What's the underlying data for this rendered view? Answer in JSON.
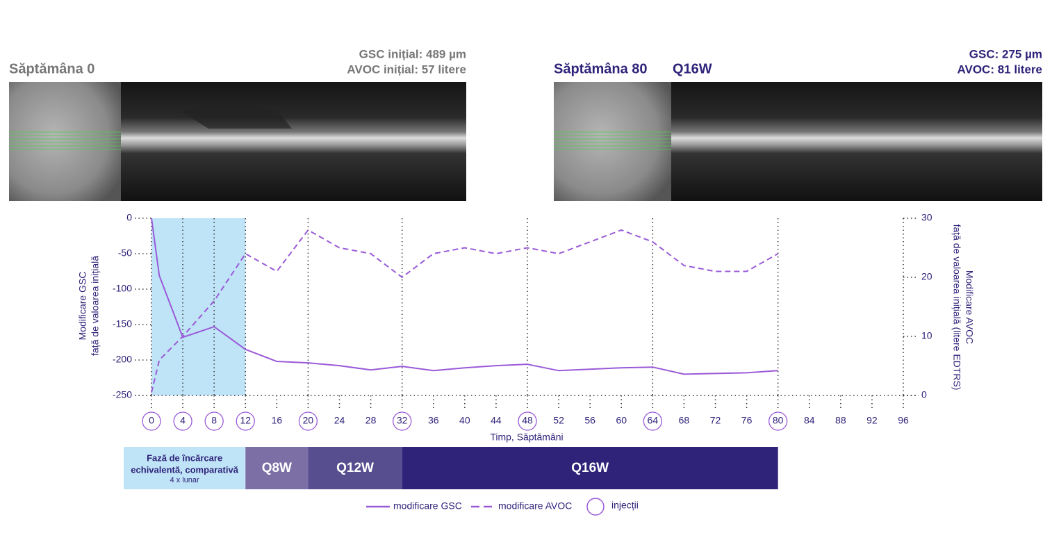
{
  "panels": [
    {
      "title": "Săptămâna 0",
      "lines": [
        "GSC inițial: 489 µm",
        "AVOC inițial: 57 litere"
      ]
    },
    {
      "title": "Săptămâna 80",
      "tag": "Q16W",
      "lines": [
        "GSC: 275 µm",
        "AVOC: 81 litere"
      ]
    }
  ],
  "chart_data": {
    "type": "line",
    "xlabel": "Timp, Săptămâni",
    "ylabel": [
      "Modificare GSC",
      "față de valoarea inițială"
    ],
    "y2label": [
      "Modificare AVOC",
      "față de valoarea inițială (litere EDTRS)"
    ],
    "x": [
      0,
      1,
      4,
      8,
      12,
      16,
      20,
      24,
      28,
      32,
      36,
      40,
      44,
      48,
      52,
      56,
      60,
      64,
      68,
      72,
      76,
      80
    ],
    "series": [
      {
        "name": "modificare GSC",
        "color": "#9a5ad8",
        "dash": false,
        "values": [
          0,
          -81,
          -168,
          -153,
          -185,
          -202,
          -204,
          -208,
          -214,
          -209,
          -215,
          -211,
          -208,
          -206,
          -215,
          -213,
          -211,
          -210,
          -220,
          -219,
          -218,
          -215
        ]
      },
      {
        "name": "modificare AVOC",
        "color": "#9a5ad8",
        "dash": true,
        "axis": "y2",
        "values": [
          0.5,
          6,
          10,
          16,
          24,
          21,
          28,
          25,
          24,
          20,
          24,
          25,
          24,
          25,
          24,
          26,
          28,
          26,
          22,
          21,
          21,
          24
        ]
      }
    ],
    "xlim": [
      0,
      96
    ],
    "xticks": [
      0,
      4,
      8,
      12,
      16,
      20,
      24,
      28,
      32,
      36,
      40,
      44,
      48,
      52,
      56,
      60,
      64,
      68,
      72,
      76,
      80,
      84,
      88,
      92,
      96
    ],
    "ylim": [
      -250,
      0
    ],
    "yticks": [
      0,
      -50,
      -100,
      -150,
      -200,
      -250
    ],
    "y2lim": [
      0,
      30
    ],
    "y2ticks": [
      30,
      20,
      10,
      0
    ],
    "injections": [
      0,
      4,
      8,
      12,
      20,
      32,
      48,
      64,
      80
    ],
    "injections_label": "injecții",
    "loading_span": [
      0,
      12
    ],
    "phases": [
      {
        "label": [
          "Fază de încărcare",
          "echivalentă, comparativă"
        ],
        "sublabel": "4 x lunar",
        "start": 0,
        "end": 12,
        "color": "#bfe3f7",
        "text_color": "#2e2379"
      },
      {
        "label": [
          "Q8W"
        ],
        "start": 12,
        "end": 20,
        "color": "#7b6fa6",
        "text_color": "#ffffff"
      },
      {
        "label": [
          "Q12W"
        ],
        "start": 20,
        "end": 32,
        "color": "#574e8f",
        "text_color": "#ffffff"
      },
      {
        "label": [
          "Q16W"
        ],
        "start": 32,
        "end": 80,
        "color": "#2e2379",
        "text_color": "#ffffff"
      }
    ]
  }
}
